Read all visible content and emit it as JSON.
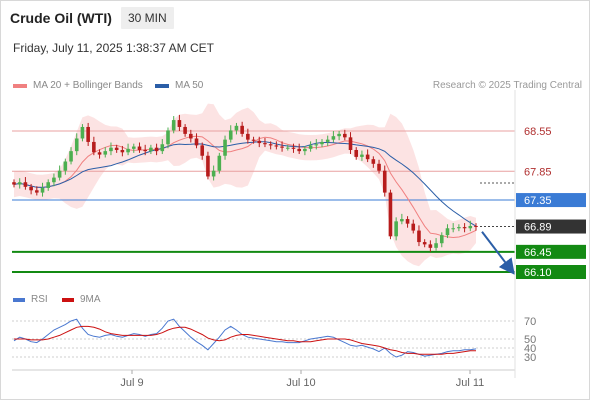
{
  "header": {
    "title": "Crude Oil (WTI)",
    "timeframe": "30 MIN",
    "datetime": "Friday, July 11, 2025 1:38:37 AM CET"
  },
  "legend": {
    "ma20_label": "MA 20 + Bollinger Bands",
    "ma50_label": "MA 50",
    "credit": "Research © 2025 Trading Central"
  },
  "rsi_legend": {
    "rsi_label": "RSI",
    "ma_label": "9MA"
  },
  "colors": {
    "ma20": "#f08080",
    "ma50": "#2b5ea7",
    "bollinger_fill": "#fcdede",
    "up_candle": "#4caf50",
    "down_candle": "#b71c1c",
    "resistance": "#e8a0a0",
    "pivot": "#3a7bd5",
    "support": "#138a13",
    "current": "#333333",
    "rsi": "#4a78d0",
    "rsi_ma": "#cc1111"
  },
  "chart_data": {
    "type": "candlestick",
    "instrument": "Crude Oil (WTI)",
    "timeframe": "30 MIN",
    "x_ticks": [
      "Jul 9",
      "Jul 10",
      "Jul 11"
    ],
    "levels": [
      {
        "name": "resistance-2",
        "value": 68.55,
        "label": "68.55",
        "style": "resistance"
      },
      {
        "name": "resistance-1",
        "value": 67.85,
        "label": "67.85",
        "style": "resistance"
      },
      {
        "name": "pivot",
        "value": 67.35,
        "label": "67.35",
        "style": "pivot"
      },
      {
        "name": "current-price",
        "value": 66.89,
        "label": "66.89",
        "style": "current"
      },
      {
        "name": "support-1",
        "value": 66.45,
        "label": "66.45",
        "style": "support"
      },
      {
        "name": "support-2",
        "value": 66.1,
        "label": "66.10",
        "style": "support"
      }
    ],
    "price_path": [
      67.62,
      67.66,
      67.58,
      67.52,
      67.48,
      67.56,
      67.66,
      67.74,
      67.86,
      68.02,
      68.2,
      68.42,
      68.62,
      68.36,
      68.18,
      68.14,
      68.2,
      68.26,
      68.22,
      68.18,
      68.24,
      68.28,
      68.22,
      68.2,
      68.26,
      68.2,
      68.32,
      68.56,
      68.74,
      68.62,
      68.5,
      68.42,
      68.3,
      68.12,
      67.76,
      67.86,
      68.12,
      68.4,
      68.56,
      68.64,
      68.5,
      68.4,
      68.38,
      68.34,
      68.32,
      68.3,
      68.28,
      68.26,
      68.26,
      68.24,
      68.2,
      68.24,
      68.3,
      68.32,
      68.36,
      68.4,
      68.46,
      68.5,
      68.44,
      68.22,
      68.1,
      68.14,
      68.06,
      67.98,
      67.86,
      67.48,
      66.72,
      66.98,
      67.02,
      66.94,
      66.82,
      66.62,
      66.58,
      66.52,
      66.6,
      66.74,
      66.86,
      66.86,
      66.88,
      66.86,
      66.9,
      66.89
    ],
    "rsi": {
      "ticks": [
        70,
        50,
        40,
        30
      ],
      "ylim": [
        20,
        80
      ],
      "rsi_values": [
        48,
        52,
        50,
        47,
        46,
        50,
        55,
        60,
        63,
        66,
        70,
        72,
        62,
        55,
        53,
        52,
        54,
        55,
        53,
        52,
        54,
        56,
        55,
        53,
        55,
        56,
        62,
        70,
        72,
        64,
        58,
        52,
        47,
        43,
        38,
        45,
        52,
        60,
        64,
        60,
        55,
        52,
        51,
        50,
        49,
        48,
        47,
        47,
        46,
        46,
        46,
        48,
        50,
        51,
        52,
        53,
        52,
        49,
        46,
        43,
        42,
        43,
        41,
        39,
        36,
        40,
        34,
        30,
        32,
        36,
        35,
        33,
        31,
        32,
        33,
        34,
        36,
        37,
        37,
        38,
        38,
        39
      ],
      "ma_values": [
        50,
        50,
        50,
        49,
        49,
        49,
        50,
        52,
        54,
        57,
        60,
        63,
        64,
        64,
        63,
        61,
        58,
        56,
        55,
        54,
        54,
        54,
        54,
        54,
        54,
        55,
        57,
        60,
        62,
        63,
        63,
        61,
        58,
        55,
        51,
        49,
        48,
        49,
        52,
        54,
        55,
        55,
        54,
        53,
        52,
        51,
        50,
        49,
        48,
        48,
        47,
        47,
        47,
        48,
        49,
        50,
        50,
        50,
        50,
        49,
        47,
        45,
        44,
        43,
        42,
        40,
        38,
        37,
        35,
        34,
        34,
        33,
        33,
        33,
        33,
        33,
        34,
        34,
        35,
        36,
        37,
        37
      ]
    }
  }
}
